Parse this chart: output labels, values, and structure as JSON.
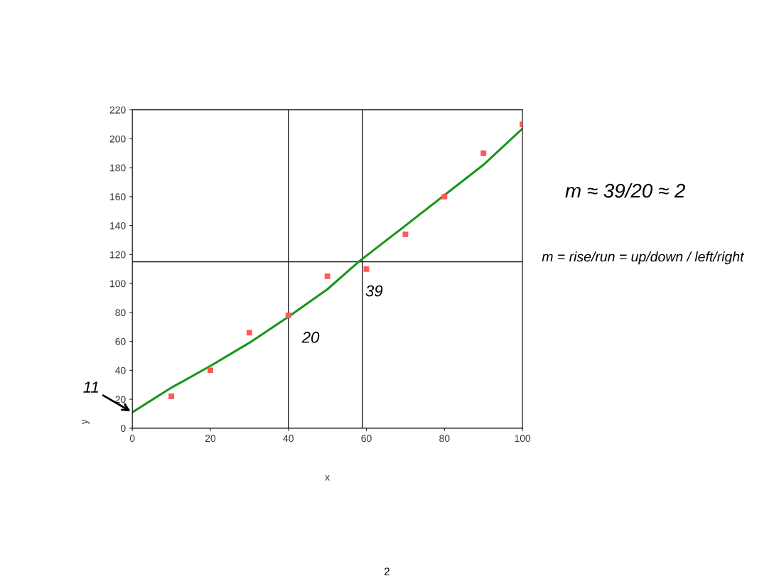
{
  "chart_data": {
    "type": "scatter",
    "xlabel": "x",
    "ylabel": "y",
    "xlim": [
      0,
      100
    ],
    "ylim": [
      0,
      220
    ],
    "xticks": [
      0,
      20,
      40,
      60,
      80,
      {
        "value": 100,
        "label": "100"
      }
    ],
    "yticks": [
      0,
      20,
      40,
      60,
      80,
      100,
      120,
      140,
      160,
      180,
      200,
      220
    ],
    "series": [
      {
        "marker": "square",
        "color": "#ff5a5a",
        "x": [
          10,
          20,
          30,
          40,
          50,
          60,
          70,
          80,
          90,
          100
        ],
        "values": [
          22,
          40,
          66,
          78,
          105,
          110,
          134,
          160,
          190,
          210
        ]
      },
      {
        "type": "line",
        "marker": "none",
        "color": "#1a951a",
        "x": [
          0,
          10,
          20,
          30,
          40,
          50,
          58,
          70,
          80,
          90,
          100
        ],
        "values": [
          11,
          28,
          43,
          59,
          77,
          96,
          115,
          140,
          161,
          182,
          207
        ]
      }
    ],
    "ref_lines": [
      {
        "axis": "y",
        "value": 115,
        "color": "#000000"
      },
      {
        "axis": "x",
        "value": 40,
        "color": "#000000"
      },
      {
        "axis": "x",
        "value": 59,
        "color": "#000000"
      }
    ],
    "annotations": [
      {
        "text": "11",
        "x": 0,
        "y": 11
      },
      "m ≈ 39/20 ≈ 2",
      "m = rise/run = up/down / left/right",
      "2",
      "39",
      "20"
    ],
    "grid": false
  }
}
